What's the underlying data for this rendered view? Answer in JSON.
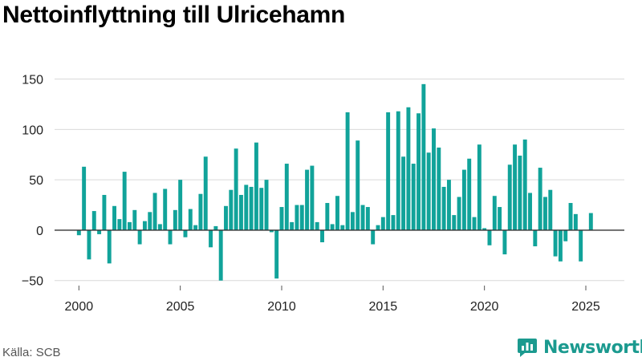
{
  "title": "Nettoinflyttning till Ulricehamn",
  "source": "Källa: SCB",
  "brand": {
    "name": "Newsworthy",
    "icon": "newsworthy-logo-icon",
    "color": "#1b9a8f"
  },
  "colors": {
    "bar": "#11a39a",
    "grid": "#d9d9d9",
    "zero_line": "#333333",
    "text": "#222222"
  },
  "chart_data": {
    "type": "bar",
    "title": "Nettoinflyttning till Ulricehamn",
    "xlabel": "",
    "ylabel": "",
    "ylim": [
      -55,
      160
    ],
    "xlim": [
      1998.8,
      2026.9
    ],
    "yticks": [
      -50,
      0,
      50,
      100,
      150
    ],
    "ytick_labels": [
      "−50",
      "0",
      "50",
      "100",
      "150"
    ],
    "xticks": [
      2000,
      2005,
      2010,
      2015,
      2020,
      2025
    ],
    "xtick_labels": [
      "2000",
      "2005",
      "2010",
      "2015",
      "2020",
      "2025"
    ],
    "grid": true,
    "x_start": 2000,
    "x_step": 0.25,
    "values": [
      -5,
      63,
      -29,
      19,
      -4,
      35,
      -33,
      24,
      11,
      58,
      8,
      20,
      -14,
      9,
      18,
      37,
      6,
      41,
      -14,
      20,
      50,
      -7,
      21,
      5,
      36,
      73,
      -17,
      4,
      -50,
      24,
      40,
      81,
      35,
      45,
      43,
      87,
      42,
      50,
      -2,
      -48,
      23,
      66,
      8,
      25,
      25,
      60,
      64,
      8,
      -12,
      27,
      6,
      34,
      5,
      117,
      18,
      89,
      25,
      23,
      -14,
      5,
      13,
      117,
      15,
      118,
      73,
      122,
      66,
      116,
      145,
      77,
      101,
      82,
      43,
      50,
      15,
      33,
      60,
      71,
      13,
      85,
      2,
      -15,
      34,
      23,
      -24,
      65,
      85,
      74,
      90,
      37,
      -16,
      62,
      33,
      40,
      -26,
      -31,
      -11,
      27,
      16,
      -31,
      null,
      17
    ]
  }
}
